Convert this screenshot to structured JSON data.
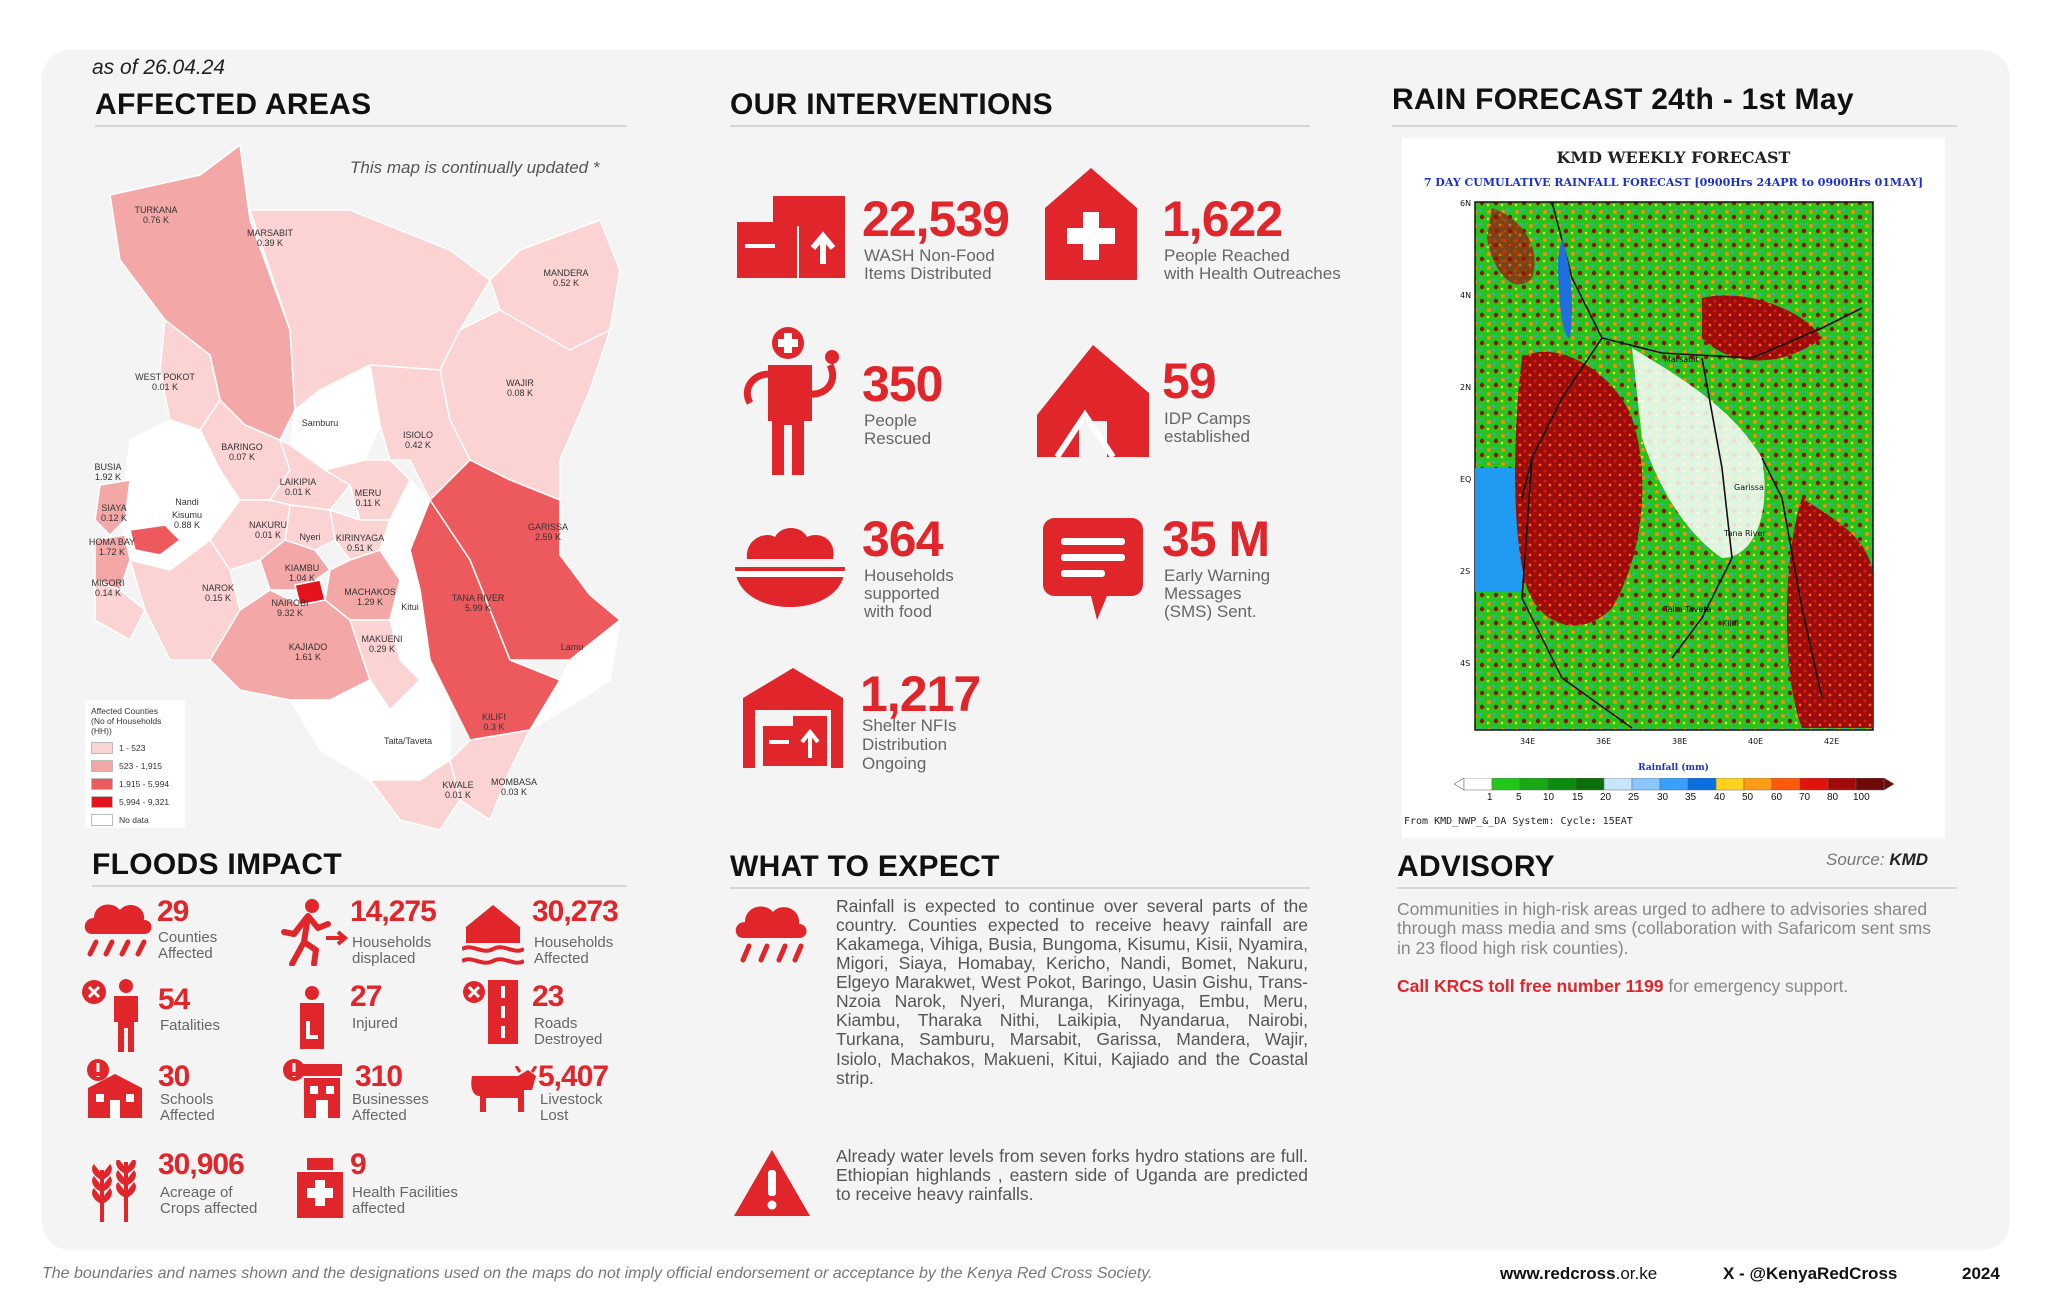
{
  "as_of": "as of 26.04.24",
  "sections": {
    "affected_areas": "AFFECTED AREAS",
    "our_interventions": "OUR INTERVENTIONS",
    "rain_forecast": "RAIN FORECAST 24th - 1st May",
    "floods_impact": "FLOODS IMPACT",
    "what_to_expect": "WHAT TO EXPECT",
    "advisory": "ADVISORY"
  },
  "map": {
    "note": "This map is continually updated *",
    "legend": {
      "title_1": "Affected Counties",
      "title_2": "(No of Households (HH))",
      "items": [
        {
          "label": "1 - 523",
          "color": "#fbd3d3"
        },
        {
          "label": "523 - 1,915",
          "color": "#f4a7a7"
        },
        {
          "label": "1,915 - 5,994",
          "color": "#ec5a5e"
        },
        {
          "label": "5,994 - 9,321",
          "color": "#e5141c"
        },
        {
          "label": "No data",
          "color": "#ffffff"
        }
      ]
    },
    "labels": [
      {
        "name": "TURKANA",
        "value": "0.76 K"
      },
      {
        "name": "MARSABIT",
        "value": "0.39 K"
      },
      {
        "name": "MANDERA",
        "value": "0.52 K"
      },
      {
        "name": "WEST POKOT",
        "value": "0.01 K"
      },
      {
        "name": "Samburu",
        "value": ""
      },
      {
        "name": "WAJIR",
        "value": "0.08 K"
      },
      {
        "name": "ISIOLO",
        "value": "0.42 K"
      },
      {
        "name": "BARINGO",
        "value": "0.07 K"
      },
      {
        "name": "BUSIA",
        "value": "1.92 K"
      },
      {
        "name": "SIAYA",
        "value": "0.12 K"
      },
      {
        "name": "HOMA BAY",
        "value": "1.72 K"
      },
      {
        "name": "MIGORI",
        "value": "0.14 K"
      },
      {
        "name": "LAIKIPIA",
        "value": "0.01 K"
      },
      {
        "name": "MERU",
        "value": "0.11 K"
      },
      {
        "name": "NAKURU",
        "value": "0.01 K"
      },
      {
        "name": "KIRINYAGA",
        "value": "0.51 K"
      },
      {
        "name": "GARISSA",
        "value": "2.59 K"
      },
      {
        "name": "KIAMBU",
        "value": "1.04 K"
      },
      {
        "name": "NAROK",
        "value": "0.15 K"
      },
      {
        "name": "NAIROBI",
        "value": "9.32 K"
      },
      {
        "name": "MACHAKOS",
        "value": "1.29 K"
      },
      {
        "name": "Kitui",
        "value": ""
      },
      {
        "name": "TANA RIVER",
        "value": "5.99 K"
      },
      {
        "name": "KAJIADO",
        "value": "1.61 K"
      },
      {
        "name": "MAKUENI",
        "value": "0.29 K"
      },
      {
        "name": "Lamu",
        "value": ""
      },
      {
        "name": "KILIFI",
        "value": "0.3 K"
      },
      {
        "name": "Taita/Taveta",
        "value": ""
      },
      {
        "name": "KWALE",
        "value": "0.01 K"
      },
      {
        "name": "MOMBASA",
        "value": "0.03 K"
      },
      {
        "name": "Nandi",
        "value": ""
      },
      {
        "name": "Nyeri",
        "value": ""
      },
      {
        "name": "Kisumu",
        "value": "0.88 K"
      }
    ]
  },
  "interventions": [
    {
      "value": "22,539",
      "label_1": "WASH Non-Food",
      "label_2": "Items Distributed",
      "label_3": "",
      "icon": "box-upload-icon"
    },
    {
      "value": "1,622",
      "label_1": "People Reached",
      "label_2": "with Health Outreaches",
      "label_3": "",
      "icon": "health-house-icon"
    },
    {
      "value": "350",
      "label_1": "People",
      "label_2": "Rescued",
      "label_3": "",
      "icon": "rescuer-icon"
    },
    {
      "value": "59",
      "label_1": "IDP Camps",
      "label_2": "established",
      "label_3": "",
      "icon": "tent-icon"
    },
    {
      "value": "364",
      "label_1": "Households",
      "label_2": "supported",
      "label_3": "with food",
      "icon": "food-bowl-icon"
    },
    {
      "value": "35 M",
      "label_1": "Early Warning",
      "label_2": "Messages",
      "label_3": "(SMS) Sent.",
      "icon": "message-icon"
    },
    {
      "value": "1,217",
      "label_1": "Shelter NFIs",
      "label_2": "Distribution",
      "label_3": "Ongoing",
      "icon": "warehouse-icon"
    }
  ],
  "forecast": {
    "title": "KMD WEEKLY FORECAST",
    "subtitle": "7 DAY CUMULATIVE RAINFALL FORECAST [0900Hrs 24APR to 0900Hrs 01MAY]",
    "lat_labels": [
      "6N",
      "4N",
      "2N",
      "EQ",
      "2S",
      "4S"
    ],
    "lon_labels": [
      "34E",
      "36E",
      "38E",
      "40E",
      "42E"
    ],
    "towns": [
      "Marsabit",
      "Garissa",
      "Tana River",
      "Kilifi",
      "Taita Taveta"
    ],
    "scale_title": "Rainfall (mm)",
    "scale_values": [
      "1",
      "5",
      "10",
      "15",
      "20",
      "25",
      "30",
      "35",
      "40",
      "50",
      "60",
      "70",
      "80",
      "100"
    ],
    "scale_colors": [
      "#ffffff",
      "#22c71a",
      "#18a814",
      "#0c8c0e",
      "#0a6f0a",
      "#c8e6ff",
      "#88c7ff",
      "#3aa0ff",
      "#0a6fe0",
      "#ffd21e",
      "#ff9b14",
      "#ff5a0a",
      "#e0140a",
      "#a00a0a",
      "#6e0a0a"
    ],
    "system": "From KMD_NWP_&_DA System: Cycle: 15EAT",
    "source_prefix": "Source:",
    "source": "KMD"
  },
  "floods_impact": [
    {
      "value": "29",
      "label_1": "Counties",
      "label_2": "Affected",
      "icon": "rain-cloud-icon"
    },
    {
      "value": "14,275",
      "label_1": "Households",
      "label_2": "displaced",
      "icon": "running-person-icon"
    },
    {
      "value": "30,273",
      "label_1": "Households",
      "label_2": "Affected",
      "icon": "flooded-house-icon"
    },
    {
      "value": "54",
      "label_1": "Fatalities",
      "label_2": "",
      "icon": "fatality-person-icon"
    },
    {
      "value": "27",
      "label_1": "Injured",
      "label_2": "",
      "icon": "injured-person-icon"
    },
    {
      "value": "23",
      "label_1": "Roads",
      "label_2": "Destroyed",
      "icon": "road-closed-icon"
    },
    {
      "value": "30",
      "label_1": "Schools",
      "label_2": "Affected",
      "icon": "school-icon"
    },
    {
      "value": "310",
      "label_1": "Businesses",
      "label_2": "Affected",
      "icon": "business-icon"
    },
    {
      "value": "5,407",
      "label_1": "Livestock",
      "label_2": "Lost",
      "icon": "cow-icon"
    },
    {
      "value": "30,906",
      "label_1": "Acreage of",
      "label_2": "Crops affected",
      "icon": "crops-icon"
    },
    {
      "value": "9",
      "label_1": "Health Facilities",
      "label_2": "affected",
      "icon": "hospital-icon"
    }
  ],
  "expect": {
    "para_1": "Rainfall is expected to continue over several parts of the country. Counties expected to receive heavy rainfall are Kakamega, Vihiga, Busia, Bungoma, Kisumu, Kisii, Nyamira, Migori, Siaya, Homabay, Kericho, Nandi, Bomet, Nakuru, Elgeyo Marakwet, West Pokot, Baringo, Uasin Gishu, Trans-Nzoia Narok, Nyeri, Muranga, Kirinyaga, Embu, Meru, Kiambu, Tharaka Nithi, Laikipia, Nyandarua, Nairobi, Turkana, Samburu, Marsabit, Garissa, Mandera, Wajir, Isiolo, Machakos, Makueni, Kitui, Kajiado and the Coastal strip.",
    "para_2": "Already water levels from seven forks hydro stations are full. Ethiopian highlands , eastern side of Uganda are predicted to receive heavy rainfalls."
  },
  "advisory": {
    "text": "Communities in high-risk areas urged to adhere to advisories shared through mass media and sms (collaboration with Safaricom sent sms in 23 flood high risk counties).",
    "call_red": "Call KRCS toll free number 1199",
    "call_rest": " for emergency support."
  },
  "footer": {
    "disclaimer": "The boundaries and names shown and the designations used on the maps do not imply official endorsement or acceptance by the Kenya Red Cross Society.",
    "website_prefix": "www.",
    "website_bold": "redcross",
    "website_suffix": ".or.ke",
    "social": "X - @KenyaRedCross",
    "year": "2024"
  },
  "colors": {
    "accent": "#e0252b",
    "card": "#f4f4f4"
  }
}
